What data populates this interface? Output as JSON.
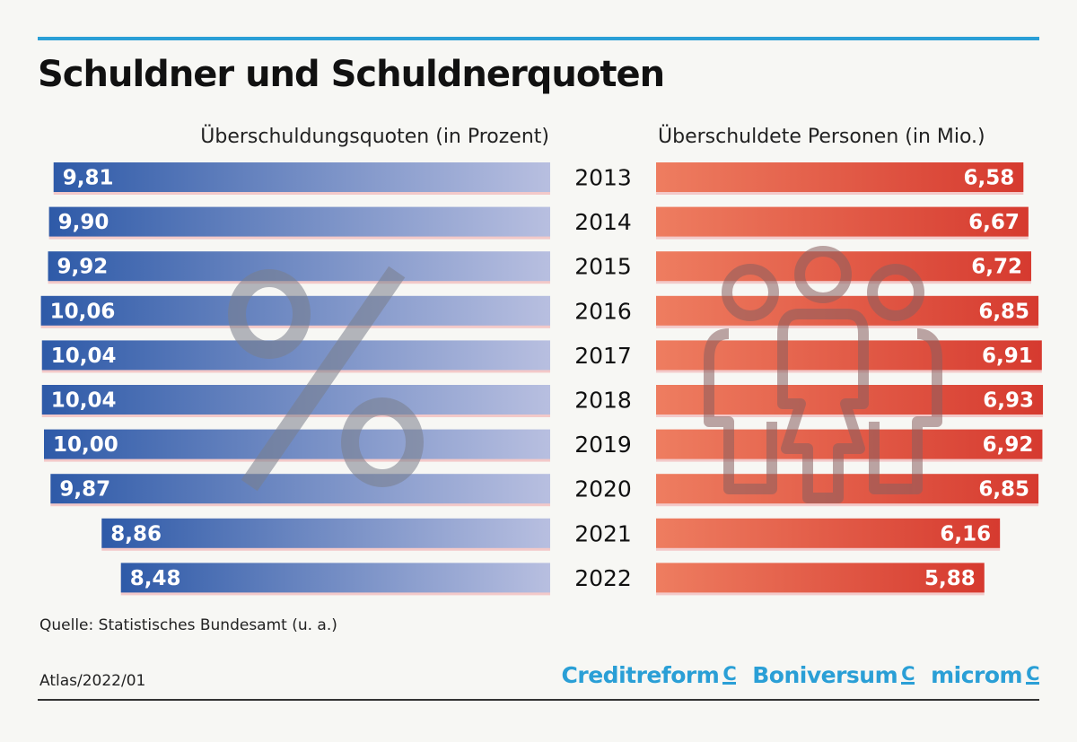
{
  "title": "Schuldner und Schuldnerquoten",
  "source": "Quelle: Statistisches Bundesamt (u. a.)",
  "atlas_ref": "Atlas/2022/01",
  "logos": [
    {
      "name": "Creditreform",
      "mark": "C"
    },
    {
      "name": "Boniversum",
      "mark": "C"
    },
    {
      "name": "microm",
      "mark": "C"
    }
  ],
  "colors": {
    "accent": "#2a9fd6",
    "blue_dark": "#2e5aa8",
    "blue_light": "#b8bfe0",
    "red_dark": "#d63a2f",
    "red_light": "#ee7d60"
  },
  "icons": [
    "percent-icon",
    "people-icon"
  ],
  "chart_data": [
    {
      "type": "bar",
      "orientation": "horizontal",
      "title": "Überschuldungsquoten (in Prozent)",
      "categories": [
        "2013",
        "2014",
        "2015",
        "2016",
        "2017",
        "2018",
        "2019",
        "2020",
        "2021",
        "2022"
      ],
      "values": [
        9.81,
        9.9,
        9.92,
        10.06,
        10.04,
        10.04,
        10.0,
        9.87,
        8.86,
        8.48
      ],
      "value_labels": [
        "9,81",
        "9,90",
        "9,92",
        "10,06",
        "10,04",
        "10,04",
        "10,00",
        "9,87",
        "8,86",
        "8,48"
      ],
      "grid": false
    },
    {
      "type": "bar",
      "orientation": "horizontal",
      "title": "Überschuldete Personen (in Mio.)",
      "categories": [
        "2013",
        "2014",
        "2015",
        "2016",
        "2017",
        "2018",
        "2019",
        "2020",
        "2021",
        "2022"
      ],
      "values": [
        6.58,
        6.67,
        6.72,
        6.85,
        6.91,
        6.93,
        6.92,
        6.85,
        6.16,
        5.88
      ],
      "value_labels": [
        "6,58",
        "6,67",
        "6,72",
        "6,85",
        "6,91",
        "6,93",
        "6,92",
        "6,85",
        "6,16",
        "5,88"
      ],
      "grid": false
    }
  ]
}
